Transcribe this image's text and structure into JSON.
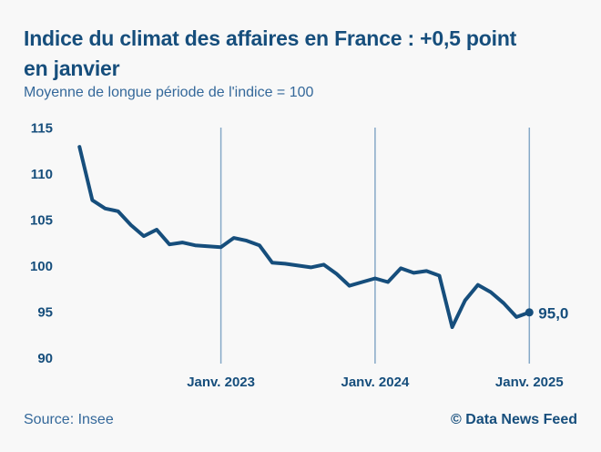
{
  "header": {
    "title": "Indice du climat des affaires en France : +0,5 point\nen janvier",
    "subtitle": "Moyenne de longue période de l'indice = 100"
  },
  "footer": {
    "source": "Source: Insee",
    "credit": "© Data News Feed"
  },
  "colors": {
    "navy": "#164e7c",
    "accent_text": "#34689a",
    "gridline": "#86a9c7",
    "background": "#f8f8f8"
  },
  "chart_data": {
    "type": "line",
    "title": "Indice du climat des affaires en France : +0,5 point en janvier",
    "note": "Moyenne de longue période de l'indice = 100",
    "series_name": "Indice du climat des affaires",
    "x": [
      "2022-02",
      "2022-03",
      "2022-04",
      "2022-05",
      "2022-06",
      "2022-07",
      "2022-08",
      "2022-09",
      "2022-10",
      "2022-11",
      "2022-12",
      "2023-01",
      "2023-02",
      "2023-03",
      "2023-04",
      "2023-05",
      "2023-06",
      "2023-07",
      "2023-08",
      "2023-09",
      "2023-10",
      "2023-11",
      "2023-12",
      "2024-01",
      "2024-02",
      "2024-03",
      "2024-04",
      "2024-05",
      "2024-06",
      "2024-07",
      "2024-08",
      "2024-09",
      "2024-10",
      "2024-11",
      "2024-12",
      "2025-01"
    ],
    "values": [
      113.0,
      107.2,
      106.3,
      106.0,
      104.5,
      103.3,
      104.0,
      102.4,
      102.6,
      102.3,
      102.2,
      102.1,
      103.1,
      102.8,
      102.3,
      100.4,
      100.3,
      100.1,
      99.9,
      100.2,
      99.2,
      97.9,
      98.3,
      98.7,
      98.3,
      99.8,
      99.3,
      99.5,
      99.0,
      93.4,
      96.3,
      98.0,
      97.2,
      96.0,
      94.5,
      95.0
    ],
    "y_ticks": [
      115,
      110,
      105,
      100,
      95,
      90
    ],
    "ylim": [
      88.5,
      115.5
    ],
    "x_tick_labels": [
      "Janv. 2023",
      "Janv. 2024",
      "Janv. 2025"
    ],
    "x_tick_indices": [
      11,
      23,
      35
    ],
    "grid": "vertical-only",
    "legend": "none",
    "end_label": "95,0",
    "end_value": 95.0,
    "source": "Insee"
  }
}
